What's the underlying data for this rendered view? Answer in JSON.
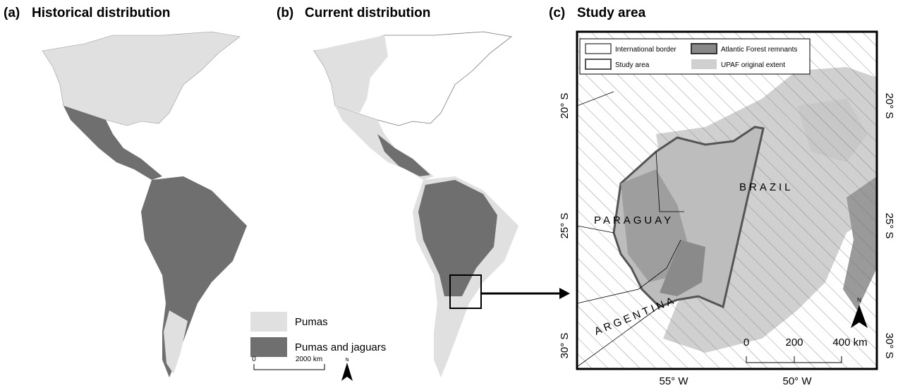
{
  "panels": [
    {
      "label": "(a)",
      "title": "Historical distribution"
    },
    {
      "label": "(b)",
      "title": "Current distribution"
    },
    {
      "label": "(c)",
      "title": "Study area"
    }
  ],
  "legend": [
    "Pumas",
    "Pumas and jaguars"
  ],
  "scale_a": {
    "start": "0",
    "end": "2000 km",
    "north": "N"
  },
  "study_area": {
    "legend": [
      "International border",
      "Atlantic Forest remnants",
      "Study area",
      "UPAF original extent"
    ],
    "countries": [
      "BRAZIL",
      "PARAGUAY",
      "ARGENTINA"
    ],
    "latitudes": [
      "20° S",
      "25° S",
      "30° S"
    ],
    "longitudes": [
      "55° W",
      "50° W"
    ],
    "scale": [
      "0",
      "200",
      "400 km"
    ],
    "north": "N"
  }
}
